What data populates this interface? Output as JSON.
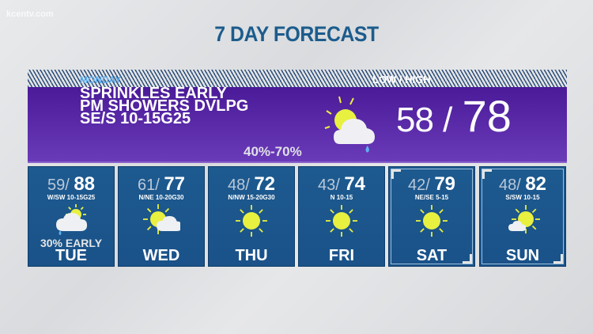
{
  "watermark": "kcentv.com",
  "title": "7 DAY FORECAST",
  "today": {
    "day": "MONDAY",
    "lines": [
      "SPRINKLES EARLY",
      "PM SHOWERS DVLPG",
      "SE/S 10-15G25"
    ],
    "low_high_label": "LOW / HIGH",
    "low": "58",
    "high": "78",
    "precip": "40%-70%",
    "icon": "partly-cloudy-rain-icon"
  },
  "days": [
    {
      "day": "TUE",
      "low": "59",
      "high": "88",
      "wind": "W/SW 10-15G25",
      "note": "30% EARLY",
      "icon": "cloud-sun-rain"
    },
    {
      "day": "WED",
      "low": "61",
      "high": "77",
      "wind": "N/NE 10-20G30",
      "note": "",
      "icon": "sun-cloud"
    },
    {
      "day": "THU",
      "low": "48",
      "high": "72",
      "wind": "N/NW 15-20G30",
      "note": "",
      "icon": "sun"
    },
    {
      "day": "FRI",
      "low": "43",
      "high": "74",
      "wind": "N 10-15",
      "note": "",
      "icon": "sun"
    },
    {
      "day": "SAT",
      "low": "42",
      "high": "79",
      "wind": "NE/SE 5-15",
      "note": "",
      "icon": "sun"
    },
    {
      "day": "SUN",
      "low": "48",
      "high": "82",
      "wind": "S/SW 10-15",
      "note": "",
      "icon": "sun-small-cloud"
    }
  ],
  "colors": {
    "title": "#1c5c8c",
    "panel": "#5a2aa8",
    "card": "#1d5a8f",
    "sun": "#e8f040",
    "precip_label": "#5fb0f0"
  }
}
